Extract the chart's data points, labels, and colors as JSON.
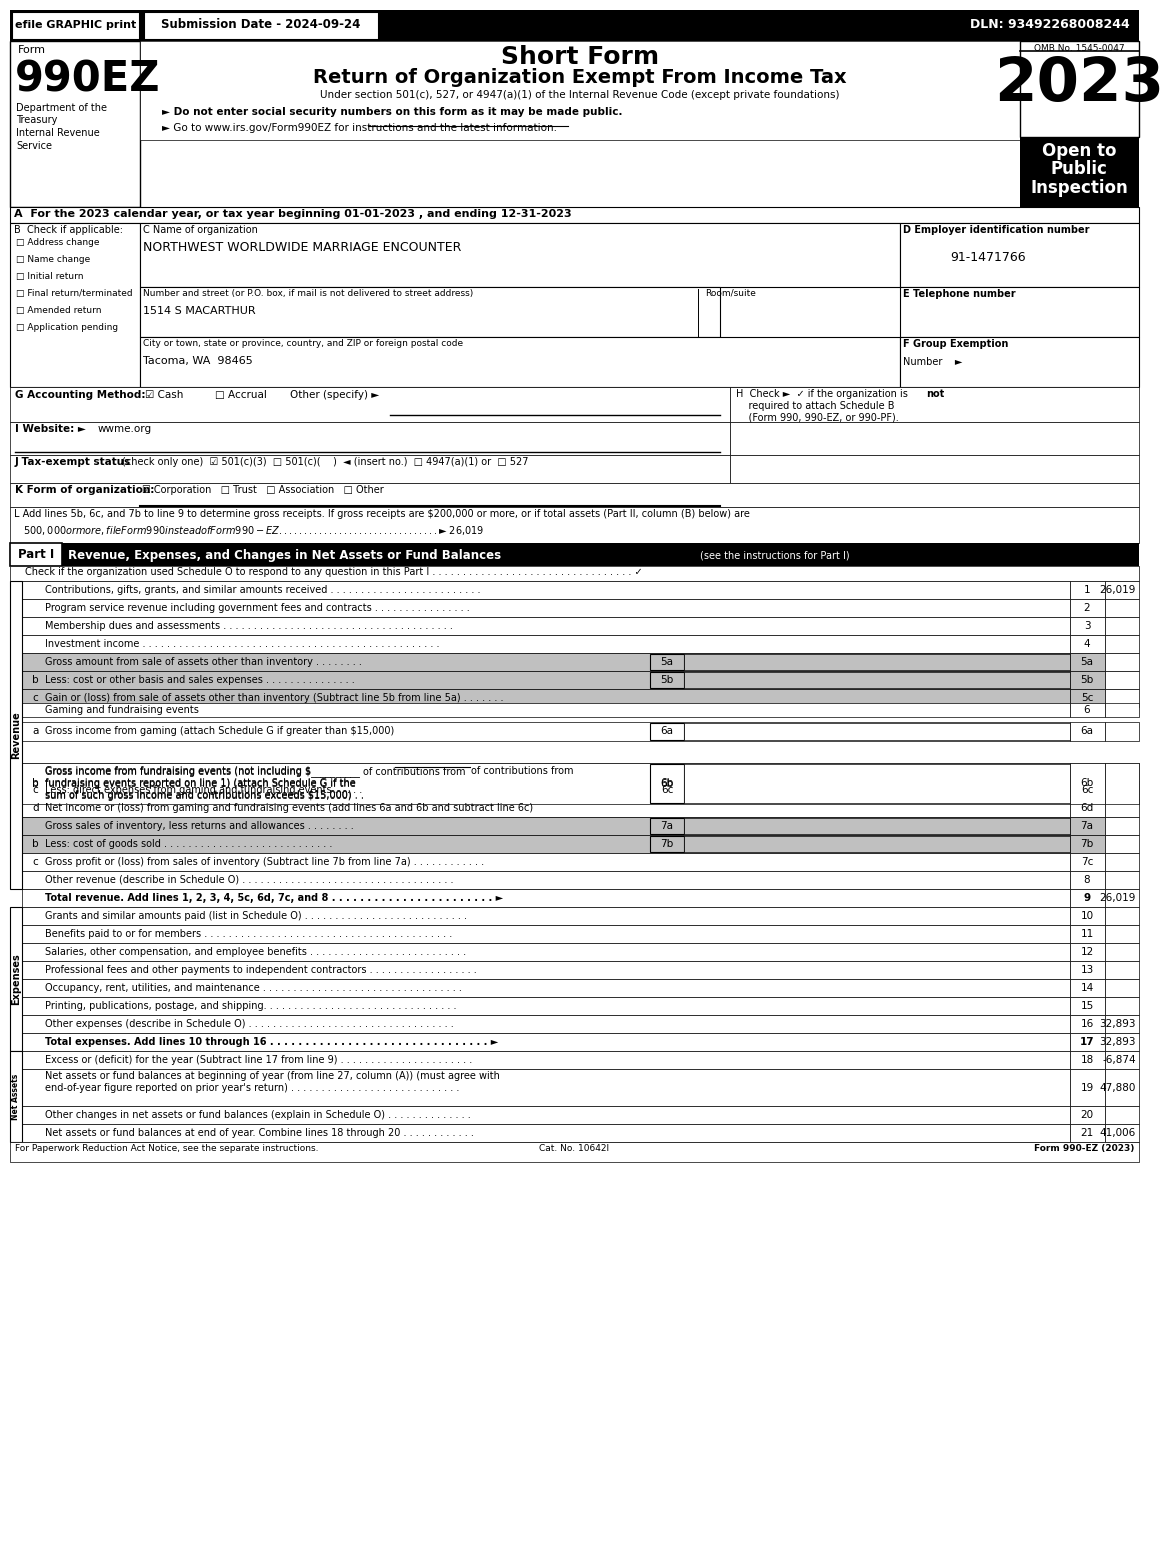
{
  "efile_text": "efile GRAPHIC print",
  "submission_date": "Submission Date - 2024-09-24",
  "dln": "DLN: 93492268008244",
  "form_label": "Form",
  "form_number": "990EZ",
  "short_form": "Short Form",
  "title": "Return of Organization Exempt From Income Tax",
  "subtitle": "Under section 501(c), 527, or 4947(a)(1) of the Internal Revenue Code (except private foundations)",
  "year": "2023",
  "omb": "OMB No. 1545-0047",
  "dept1": "Department of the",
  "dept2": "Treasury",
  "dept3": "Internal Revenue",
  "dept4": "Service",
  "bullet1": "► Do not enter social security numbers on this form as it may be made public.",
  "bullet2": "► Go to www.irs.gov/Form990EZ for instructions and the latest information.",
  "line_A": "A  For the 2023 calendar year, or tax year beginning 01-01-2023 , and ending 12-31-2023",
  "checks": [
    "Address change",
    "Name change",
    "Initial return",
    "Final return/terminated",
    "Amended return",
    "Application pending"
  ],
  "org_name": "NORTHWEST WORLDWIDE MARRIAGE ENCOUNTER",
  "street_label": "Number and street (or P.O. box, if mail is not delivered to street address)",
  "room_label": "Room/suite",
  "street": "1514 S MACARTHUR",
  "city_label": "City or town, state or province, country, and ZIP or foreign postal code",
  "city": "Tacoma, WA  98465",
  "ein": "91-1471766",
  "footer_left": "For Paperwork Reduction Act Notice, see the separate instructions.",
  "footer_cat": "Cat. No. 10642I",
  "footer_right": "Form 990-EZ (2023)"
}
